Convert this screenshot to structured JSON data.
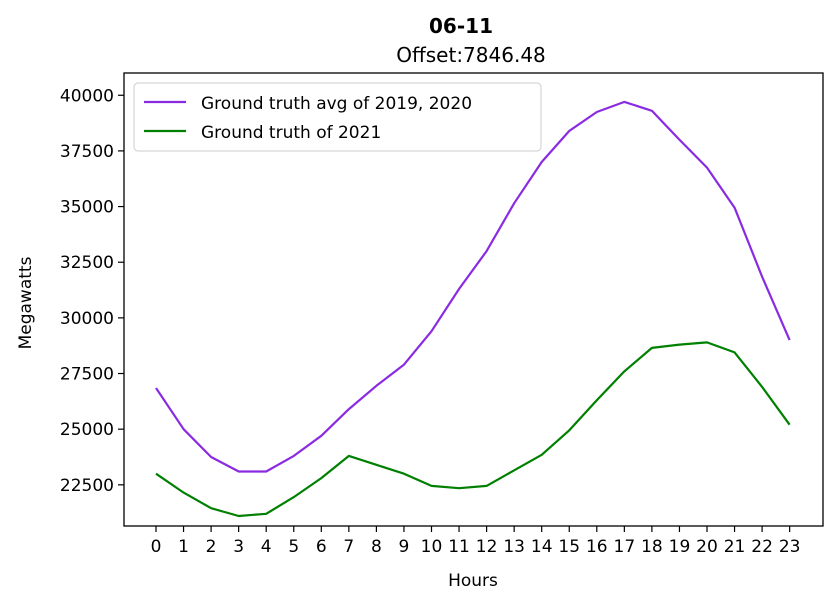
{
  "chart_data": {
    "type": "line",
    "title": "06-11",
    "subtitle": "Offset:7846.48",
    "xlabel": "Hours",
    "ylabel": "Megawatts",
    "x": [
      0,
      1,
      2,
      3,
      4,
      5,
      6,
      7,
      8,
      9,
      10,
      11,
      12,
      13,
      14,
      15,
      16,
      17,
      18,
      19,
      20,
      21,
      22,
      23
    ],
    "xticks": [
      "0",
      "1",
      "2",
      "3",
      "4",
      "5",
      "6",
      "7",
      "8",
      "9",
      "10",
      "11",
      "12",
      "13",
      "14",
      "15",
      "16",
      "17",
      "18",
      "19",
      "20",
      "21",
      "22",
      "23"
    ],
    "ylim": [
      20650,
      41000
    ],
    "yticks": [
      22500,
      25000,
      27500,
      30000,
      32500,
      35000,
      37500,
      40000
    ],
    "ytick_labels": [
      "22500",
      "25000",
      "27500",
      "30000",
      "32500",
      "35000",
      "37500",
      "40000"
    ],
    "grid": false,
    "legend": "upper left",
    "series": [
      {
        "name": "Ground truth avg of 2019, 2020",
        "color": "#8a2be2",
        "values": [
          26850,
          25000,
          23750,
          23100,
          23100,
          23800,
          24700,
          25900,
          26950,
          27900,
          29400,
          31300,
          33000,
          35150,
          37000,
          38400,
          39250,
          39700,
          39300,
          38000,
          36750,
          34950,
          31850,
          29000
        ]
      },
      {
        "name": "Ground truth of 2021",
        "color": "#008000",
        "values": [
          23000,
          22150,
          21450,
          21100,
          21200,
          21950,
          22800,
          23800,
          23400,
          23000,
          22450,
          22350,
          22450,
          23150,
          23850,
          24950,
          26300,
          27600,
          28650,
          28800,
          28900,
          28450,
          26900,
          25200
        ]
      }
    ]
  }
}
